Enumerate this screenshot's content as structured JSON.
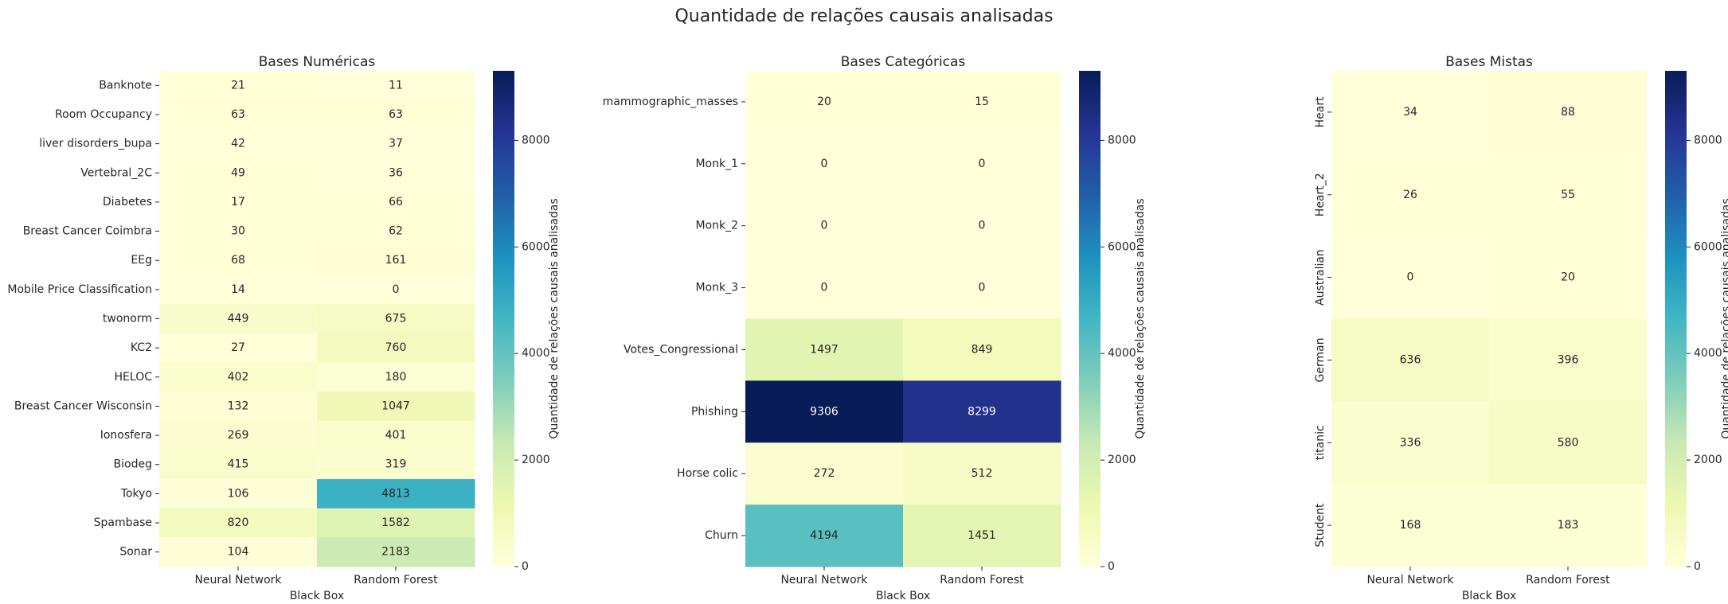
{
  "suptitle": "Quantidade de relações causais analisadas",
  "colorbar_label": "Quantidade de relações causais analisadas",
  "colormap": [
    "#ffffd9",
    "#edf8b1",
    "#c7e9b4",
    "#7fcdbb",
    "#41b6c4",
    "#1d91c0",
    "#225ea8",
    "#253494",
    "#081d58"
  ],
  "chart_data": [
    {
      "type": "heatmap",
      "title": "Bases Numéricas",
      "xlabel": "Black Box",
      "ylabel": "",
      "ytick_rotation": 0,
      "columns": [
        "Neural Network",
        "Random Forest"
      ],
      "rows": [
        "Banknote",
        "Room Occupancy",
        "liver disorders_bupa",
        "Vertebral_2C",
        "Diabetes",
        "Breast Cancer Coimbra",
        "EEg",
        "Mobile Price Classification",
        "twonorm",
        "KC2",
        "HELOC",
        "Breast Cancer Wisconsin",
        "Ionosfera",
        "Biodeg",
        "Tokyo",
        "Spambase",
        "Sonar"
      ],
      "values": [
        [
          21,
          11
        ],
        [
          63,
          63
        ],
        [
          42,
          37
        ],
        [
          49,
          36
        ],
        [
          17,
          66
        ],
        [
          30,
          62
        ],
        [
          68,
          161
        ],
        [
          14,
          0
        ],
        [
          449,
          675
        ],
        [
          27,
          760
        ],
        [
          402,
          180
        ],
        [
          132,
          1047
        ],
        [
          269,
          401
        ],
        [
          415,
          319
        ],
        [
          106,
          4813
        ],
        [
          820,
          1582
        ],
        [
          104,
          2183
        ]
      ],
      "vmin": 0,
      "vmax": 9306,
      "colorbar_ticks": [
        0,
        2000,
        4000,
        6000,
        8000
      ]
    },
    {
      "type": "heatmap",
      "title": "Bases Categóricas",
      "xlabel": "Black Box",
      "ylabel": "",
      "ytick_rotation": 0,
      "columns": [
        "Neural Network",
        "Random Forest"
      ],
      "rows": [
        "mammographic_masses",
        "Monk_1",
        "Monk_2",
        "Monk_3",
        "Votes_Congressional",
        "Phishing",
        "Horse colic",
        "Churn"
      ],
      "values": [
        [
          20,
          15
        ],
        [
          0,
          0
        ],
        [
          0,
          0
        ],
        [
          0,
          0
        ],
        [
          1497,
          849
        ],
        [
          9306,
          8299
        ],
        [
          272,
          512
        ],
        [
          4194,
          1451
        ]
      ],
      "vmin": 0,
      "vmax": 9306,
      "colorbar_ticks": [
        0,
        2000,
        4000,
        6000,
        8000
      ]
    },
    {
      "type": "heatmap",
      "title": "Bases Mistas",
      "xlabel": "Black Box",
      "ylabel": "",
      "ytick_rotation": 90,
      "columns": [
        "Neural Network",
        "Random Forest"
      ],
      "rows": [
        "Heart",
        "Heart_2",
        "Australian",
        "German",
        "titanic",
        "Student"
      ],
      "values": [
        [
          34,
          88
        ],
        [
          26,
          55
        ],
        [
          0,
          20
        ],
        [
          636,
          396
        ],
        [
          336,
          580
        ],
        [
          168,
          183
        ]
      ],
      "vmin": 0,
      "vmax": 9306,
      "colorbar_ticks": [
        0,
        2000,
        4000,
        6000,
        8000
      ]
    }
  ]
}
